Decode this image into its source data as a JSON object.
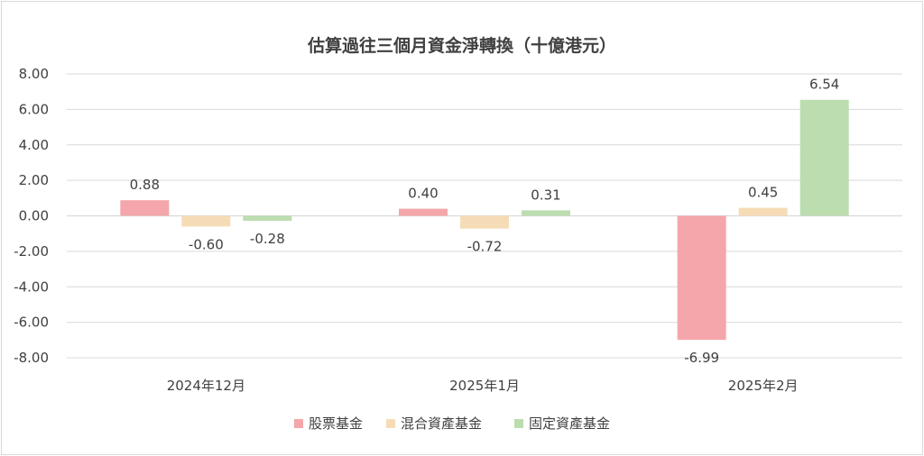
{
  "chart_data": {
    "type": "bar",
    "title": "估算過往三個月資金淨轉換（十億港元）",
    "categories": [
      "2024年12月",
      "2025年1月",
      "2025年2月"
    ],
    "series": [
      {
        "name": "股票基金",
        "color": "#f4a6ab",
        "values": [
          0.88,
          0.4,
          -6.99
        ],
        "labels": [
          "0.88",
          "0.40",
          "-6.99"
        ]
      },
      {
        "name": "混合資產基金",
        "color": "#f6dcb6",
        "values": [
          -0.6,
          -0.72,
          0.45
        ],
        "labels": [
          "-0.60",
          "-0.72",
          "0.45"
        ]
      },
      {
        "name": "固定資產基金",
        "color": "#bcddb0",
        "values": [
          -0.28,
          0.31,
          6.54
        ],
        "labels": [
          "-0.28",
          "0.31",
          "6.54"
        ]
      }
    ],
    "yticks": [
      "8.00",
      "6.00",
      "4.00",
      "2.00",
      "0.00",
      "-2.00",
      "-4.00",
      "-6.00",
      "-8.00"
    ],
    "ylim": [
      -8,
      8
    ],
    "grid": true,
    "legend_position": "bottom"
  }
}
